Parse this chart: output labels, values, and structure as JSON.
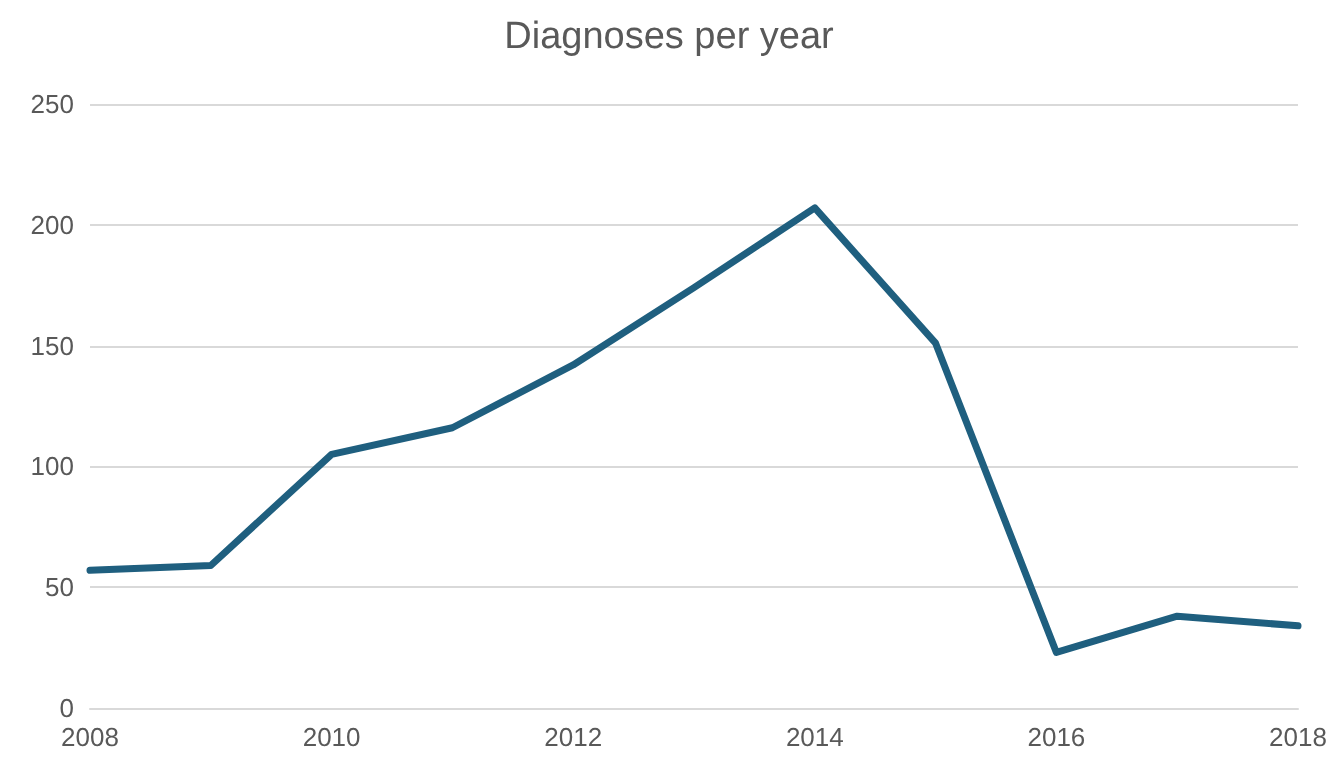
{
  "chart_data": {
    "type": "line",
    "title": "Diagnoses per year",
    "x": [
      2008,
      2009,
      2010,
      2011,
      2012,
      2013,
      2014,
      2015,
      2016,
      2017,
      2018
    ],
    "series": [
      {
        "color": "#1f5f7f",
        "values": [
          57,
          59,
          105,
          116,
          142,
          174,
          207,
          151,
          23,
          38,
          34
        ]
      }
    ],
    "xlim": [
      2008,
      2018
    ],
    "xticks": [
      2008,
      2010,
      2012,
      2014,
      2016,
      2018
    ],
    "ylim": [
      0,
      250
    ],
    "yticks": [
      0,
      50,
      100,
      150,
      200,
      250
    ],
    "grid": "y",
    "marker": "none",
    "line_style": "solid"
  }
}
